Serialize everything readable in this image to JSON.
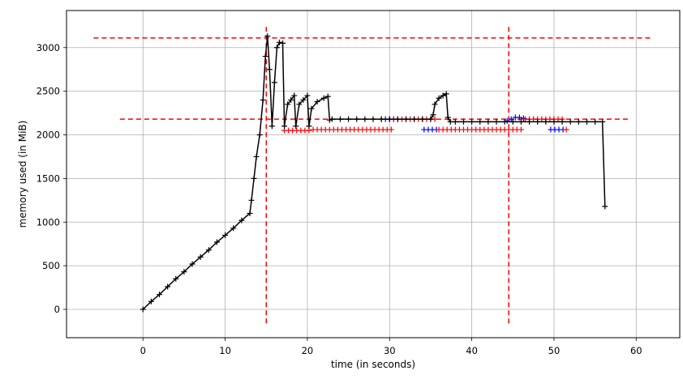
{
  "chart_data": {
    "type": "line",
    "title": "",
    "xlabel": "time (in seconds)",
    "ylabel": "memory used (in MiB)",
    "xlim": [
      -9.3,
      65.3
    ],
    "ylim": [
      -325,
      3425
    ],
    "xticks": [
      0,
      10,
      20,
      30,
      40,
      50,
      60
    ],
    "yticks": [
      0,
      500,
      1000,
      1500,
      2000,
      2500,
      3000
    ],
    "grid": true,
    "marker": "+",
    "series": [
      {
        "color": "#000000",
        "line": true,
        "points": [
          [
            0,
            0
          ],
          [
            1,
            90
          ],
          [
            2,
            170
          ],
          [
            3,
            260
          ],
          [
            4,
            350
          ],
          [
            5,
            430
          ],
          [
            6,
            520
          ],
          [
            7,
            600
          ],
          [
            8,
            680
          ],
          [
            9,
            770
          ],
          [
            10,
            850
          ],
          [
            11,
            930
          ],
          [
            12,
            1020
          ],
          [
            13,
            1100
          ],
          [
            13.2,
            1250
          ],
          [
            13.5,
            1500
          ],
          [
            13.8,
            1750
          ],
          [
            14.2,
            2000
          ],
          [
            14.6,
            2400
          ],
          [
            14.9,
            2900
          ],
          [
            15.15,
            3130
          ],
          [
            15.4,
            2750
          ],
          [
            15.7,
            2100
          ],
          [
            16.0,
            2600
          ],
          [
            16.3,
            3000
          ],
          [
            16.6,
            3060
          ],
          [
            17.0,
            3050
          ],
          [
            17.2,
            2100
          ],
          [
            17.6,
            2350
          ],
          [
            18.0,
            2400
          ],
          [
            18.4,
            2450
          ],
          [
            18.6,
            2100
          ],
          [
            19.0,
            2350
          ],
          [
            19.5,
            2400
          ],
          [
            20.0,
            2450
          ],
          [
            20.2,
            2100
          ],
          [
            20.5,
            2300
          ],
          [
            21.2,
            2380
          ],
          [
            22.0,
            2420
          ],
          [
            22.5,
            2440
          ],
          [
            22.7,
            2170
          ],
          [
            23,
            2180
          ],
          [
            24,
            2180
          ],
          [
            25,
            2180
          ],
          [
            26,
            2180
          ],
          [
            27,
            2180
          ],
          [
            28,
            2180
          ],
          [
            29,
            2180
          ],
          [
            30,
            2180
          ],
          [
            31,
            2180
          ],
          [
            32,
            2180
          ],
          [
            33,
            2180
          ],
          [
            34,
            2180
          ],
          [
            35,
            2180
          ],
          [
            35.3,
            2230
          ],
          [
            35.5,
            2350
          ],
          [
            36.0,
            2420
          ],
          [
            36.5,
            2450
          ],
          [
            36.9,
            2470
          ],
          [
            37.1,
            2200
          ],
          [
            37.4,
            2150
          ],
          [
            38,
            2150
          ],
          [
            39,
            2150
          ],
          [
            40,
            2150
          ],
          [
            41,
            2150
          ],
          [
            42,
            2150
          ],
          [
            43,
            2150
          ],
          [
            44,
            2150
          ],
          [
            45,
            2150
          ],
          [
            46,
            2150
          ],
          [
            47,
            2150
          ],
          [
            48,
            2150
          ],
          [
            49,
            2150
          ],
          [
            50,
            2150
          ],
          [
            51,
            2150
          ],
          [
            52,
            2150
          ],
          [
            53,
            2150
          ],
          [
            54,
            2150
          ],
          [
            55,
            2150
          ],
          [
            55.9,
            2150
          ],
          [
            56.2,
            1180
          ]
        ]
      },
      {
        "color": "#0000ff",
        "line": false,
        "points": [
          [
            29,
            2180
          ],
          [
            29.5,
            2180
          ],
          [
            30,
            2180
          ],
          [
            30.5,
            2180
          ],
          [
            34.2,
            2060
          ],
          [
            34.7,
            2060
          ],
          [
            35.2,
            2060
          ],
          [
            35.7,
            2060
          ],
          [
            44.3,
            2160
          ],
          [
            44.8,
            2180
          ],
          [
            45.3,
            2200
          ],
          [
            45.8,
            2200
          ],
          [
            46.3,
            2190
          ],
          [
            49.6,
            2060
          ],
          [
            50.1,
            2060
          ],
          [
            50.6,
            2060
          ],
          [
            51.1,
            2060
          ]
        ]
      },
      {
        "color": "#ff0000",
        "line": false,
        "points": [
          [
            17.2,
            2050
          ],
          [
            17.7,
            2050
          ],
          [
            18.2,
            2050
          ],
          [
            18.7,
            2050
          ],
          [
            19.2,
            2050
          ],
          [
            19.7,
            2050
          ],
          [
            20.2,
            2050
          ],
          [
            20.7,
            2060
          ],
          [
            21.2,
            2060
          ],
          [
            21.7,
            2060
          ],
          [
            22.2,
            2060
          ],
          [
            22.7,
            2060
          ],
          [
            23.2,
            2060
          ],
          [
            23.7,
            2060
          ],
          [
            24.2,
            2060
          ],
          [
            24.7,
            2060
          ],
          [
            25.2,
            2060
          ],
          [
            25.7,
            2060
          ],
          [
            26.2,
            2060
          ],
          [
            26.7,
            2060
          ],
          [
            27.2,
            2060
          ],
          [
            27.7,
            2060
          ],
          [
            28.2,
            2060
          ],
          [
            28.7,
            2060
          ],
          [
            29.2,
            2060
          ],
          [
            29.7,
            2060
          ],
          [
            30.2,
            2060
          ],
          [
            30.5,
            2180
          ],
          [
            31,
            2180
          ],
          [
            31.5,
            2180
          ],
          [
            32,
            2180
          ],
          [
            32.5,
            2180
          ],
          [
            33,
            2180
          ],
          [
            33.5,
            2180
          ],
          [
            34,
            2180
          ],
          [
            34.5,
            2180
          ],
          [
            35,
            2180
          ],
          [
            35.5,
            2180
          ],
          [
            36,
            2060
          ],
          [
            36.5,
            2060
          ],
          [
            37,
            2060
          ],
          [
            37.5,
            2060
          ],
          [
            38,
            2060
          ],
          [
            38.5,
            2060
          ],
          [
            39,
            2060
          ],
          [
            39.5,
            2060
          ],
          [
            40,
            2060
          ],
          [
            40.5,
            2060
          ],
          [
            41,
            2060
          ],
          [
            41.5,
            2060
          ],
          [
            42,
            2060
          ],
          [
            42.5,
            2060
          ],
          [
            43,
            2060
          ],
          [
            43.5,
            2060
          ],
          [
            44,
            2060
          ],
          [
            44.5,
            2060
          ],
          [
            45,
            2060
          ],
          [
            45.5,
            2060
          ],
          [
            46,
            2060
          ],
          [
            46.5,
            2180
          ],
          [
            47,
            2180
          ],
          [
            47.5,
            2180
          ],
          [
            48,
            2180
          ],
          [
            48.5,
            2180
          ],
          [
            49,
            2180
          ],
          [
            49.5,
            2180
          ],
          [
            50,
            2180
          ],
          [
            50.5,
            2180
          ],
          [
            51,
            2180
          ],
          [
            51.5,
            2060
          ]
        ]
      }
    ],
    "reference_lines": [
      {
        "orientation": "horizontal",
        "value": 3110,
        "from": -6,
        "to": 62,
        "color": "#ff0000",
        "style": "dashed"
      },
      {
        "orientation": "horizontal",
        "value": 2180,
        "from": -2.8,
        "to": 59,
        "color": "#ff0000",
        "style": "dashed"
      },
      {
        "orientation": "vertical",
        "value": 15.0,
        "from": -160,
        "to": 3270,
        "color": "#ff0000",
        "style": "dashed"
      },
      {
        "orientation": "vertical",
        "value": 44.5,
        "from": -160,
        "to": 3270,
        "color": "#ff0000",
        "style": "dashed"
      }
    ]
  }
}
